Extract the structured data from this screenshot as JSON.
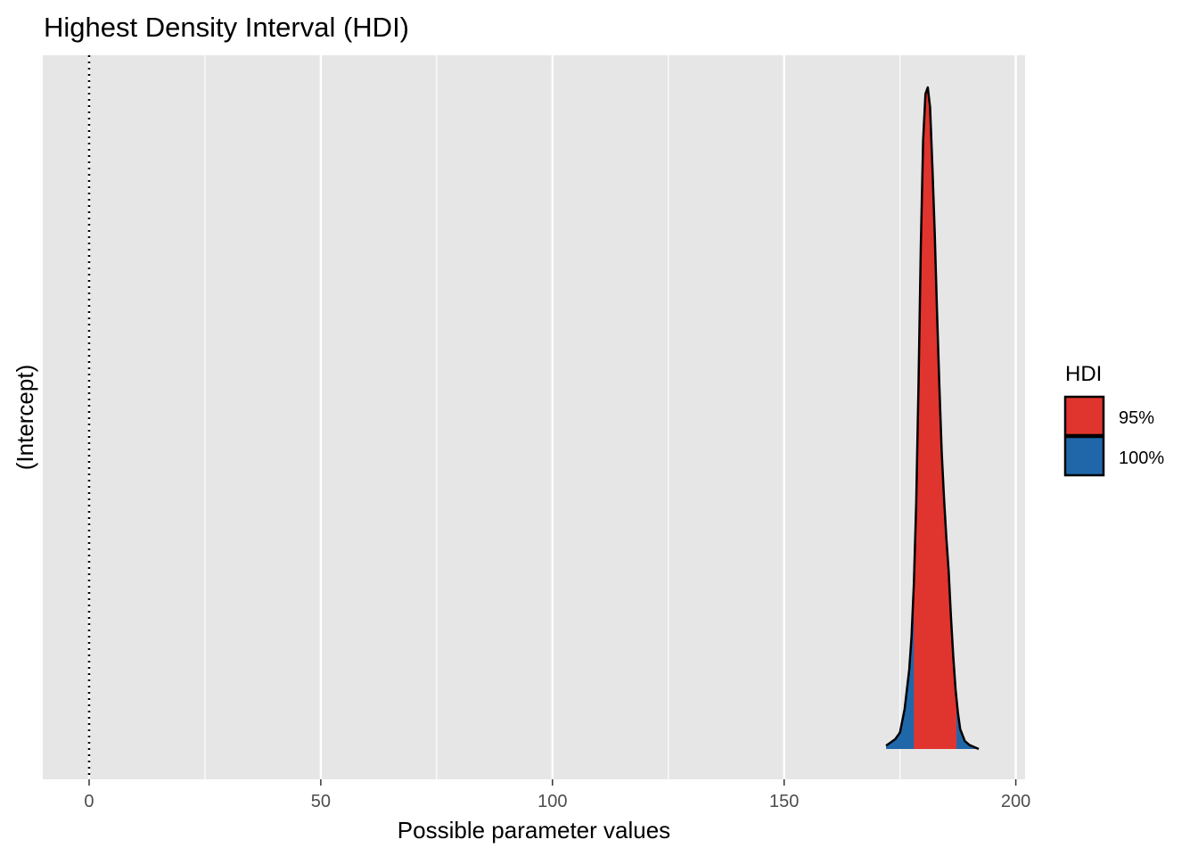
{
  "chart_data": {
    "type": "area",
    "title": "Highest Density Interval (HDI)",
    "xlabel": "Possible parameter values",
    "ylabel": "(Intercept)",
    "xlim": [
      -10,
      202
    ],
    "x_ticks": [
      0,
      50,
      100,
      150,
      200
    ],
    "x_tick_labels": [
      "0",
      "50",
      "100",
      "150",
      "200"
    ],
    "x_minor_ticks": [
      25,
      75,
      125,
      175
    ],
    "reference_line_x": 0,
    "grid": true,
    "legend": {
      "title": "HDI",
      "position": "right",
      "entries": [
        {
          "label": "95%",
          "color": "#E0342E"
        },
        {
          "label": "100%",
          "color": "#2067AA"
        }
      ]
    },
    "density": {
      "x": [
        172,
        173,
        174,
        175,
        176,
        177,
        177.5,
        178,
        178.5,
        179,
        179.5,
        180,
        180.5,
        181,
        181.5,
        182,
        182.5,
        183,
        183.5,
        184,
        184.5,
        185,
        185.5,
        186,
        186.5,
        187,
        187.5,
        188,
        189,
        190,
        191,
        192
      ],
      "y": [
        0.005,
        0.01,
        0.015,
        0.025,
        0.06,
        0.12,
        0.17,
        0.25,
        0.37,
        0.55,
        0.76,
        0.92,
        0.99,
        1.0,
        0.97,
        0.88,
        0.78,
        0.66,
        0.55,
        0.45,
        0.38,
        0.32,
        0.27,
        0.2,
        0.14,
        0.09,
        0.055,
        0.03,
        0.012,
        0.006,
        0.003,
        0.0
      ],
      "hdi_95": [
        178,
        187.2
      ],
      "hdi_100": [
        172,
        192
      ]
    },
    "colors": {
      "panel": "#E6E6E6",
      "grid": "#FFFFFF",
      "outline": "#000000"
    }
  }
}
